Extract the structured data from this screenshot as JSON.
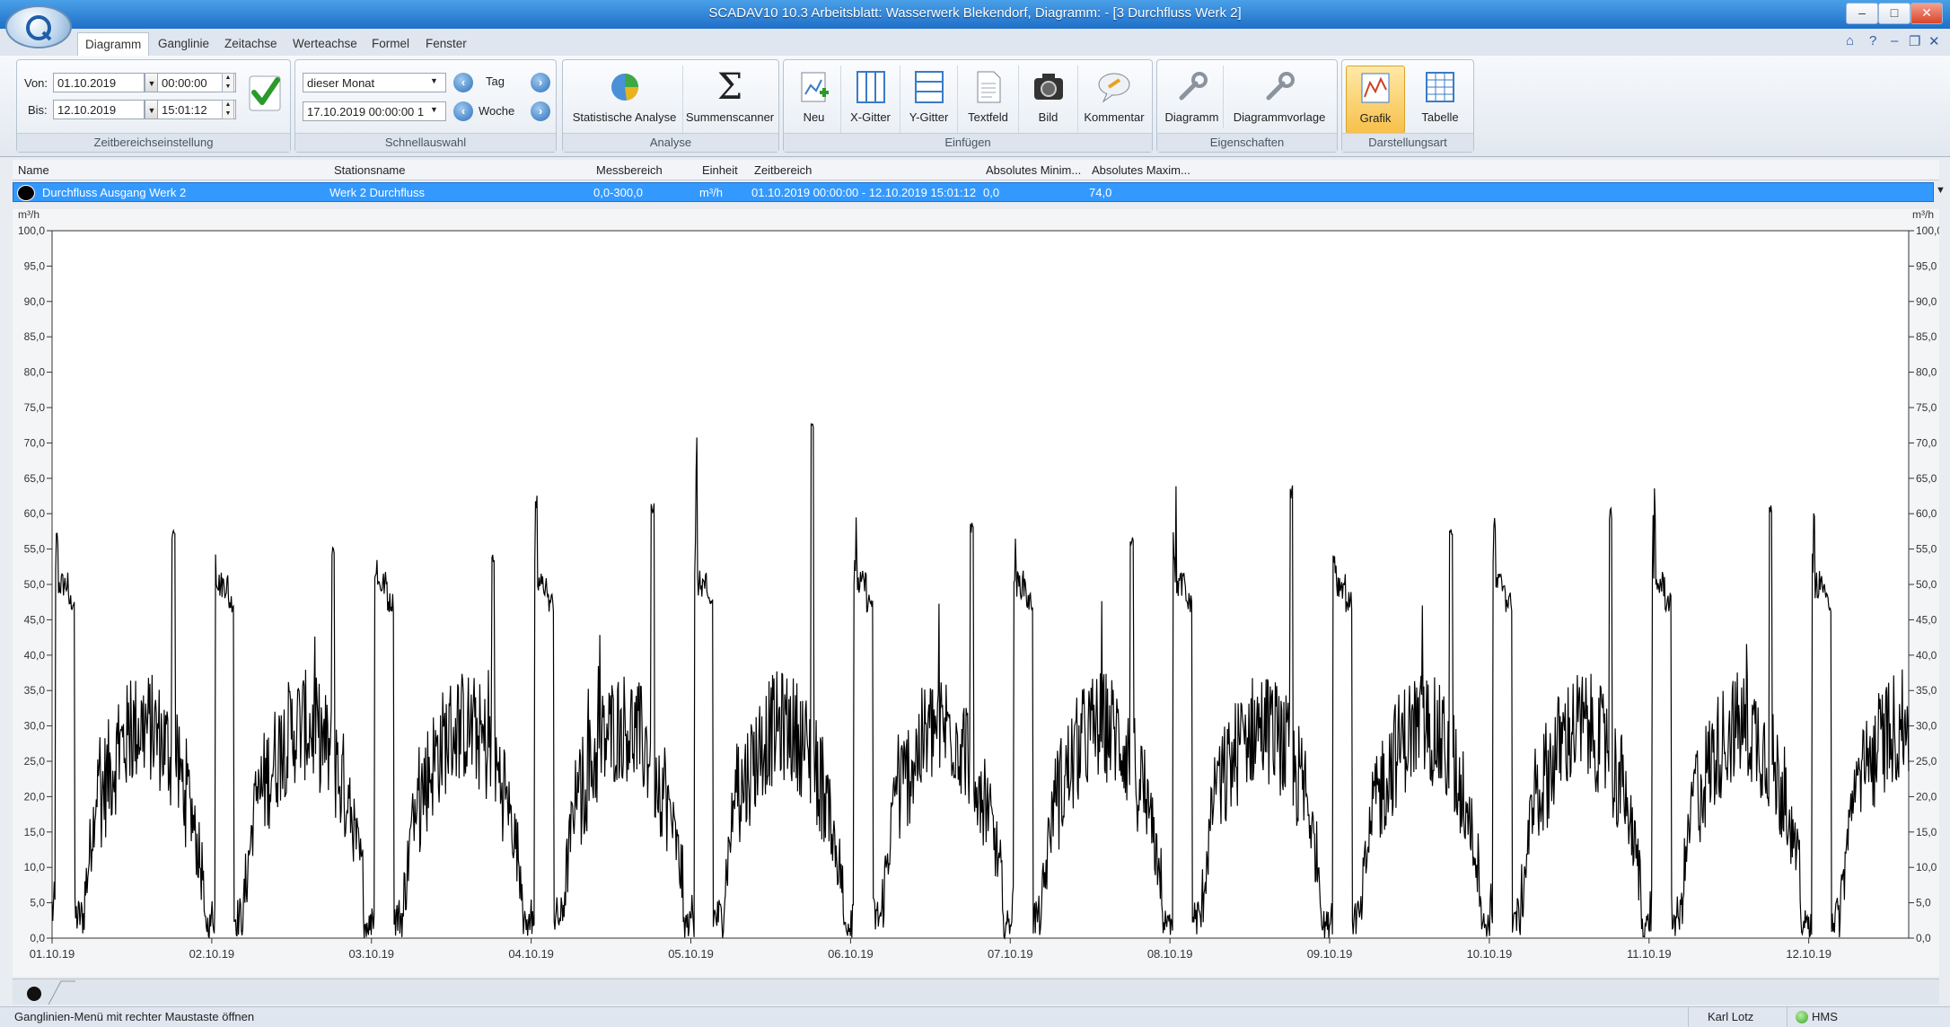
{
  "window": {
    "title": "SCADAV10 10.3 Arbeitsblatt: Wasserwerk Blekendorf, Diagramm:  - [3 Durchfluss Werk 2]",
    "buttons": [
      "–",
      "□",
      "✕"
    ]
  },
  "menu": {
    "tabs": [
      "Diagramm",
      "Ganglinie",
      "Zeitachse",
      "Werteachse",
      "Formel",
      "Fenster"
    ],
    "active": "Diagramm",
    "mdi_icons": [
      "⌂",
      "?",
      "–",
      "❐",
      "✕"
    ]
  },
  "ribbon": {
    "time_range": {
      "von_label": "Von:",
      "von_date": "01.10.2019",
      "von_time": "00:00:00",
      "bis_label": "Bis:",
      "bis_date": "12.10.2019",
      "bis_time": "15:01:12",
      "group_label": "Zeitbereichseinstellung"
    },
    "quick_select": {
      "period": "dieser Monat",
      "date": "17.10.2019 00:00:00 1",
      "tag_label": "Tag",
      "woche_label": "Woche",
      "group_label": "Schnellauswahl"
    },
    "analyse": {
      "buttons": [
        "Statistische Analyse",
        "Summenscanner"
      ],
      "group_label": "Analyse"
    },
    "einfuegen": {
      "buttons": [
        "Neu",
        "X-Gitter",
        "Y-Gitter",
        "Textfeld",
        "Bild",
        "Kommentar"
      ],
      "group_label": "Einfügen"
    },
    "eigenschaften": {
      "buttons": [
        "Diagramm",
        "Diagrammvorlage"
      ],
      "group_label": "Eigenschaften"
    },
    "darstellung": {
      "buttons": [
        "Grafik",
        "Tabelle"
      ],
      "active": "Grafik",
      "group_label": "Darstellungsart"
    }
  },
  "grid": {
    "headers": [
      "Name",
      "Stationsname",
      "Messbereich",
      "Einheit",
      "Zeitbereich",
      "Absolutes Minim...",
      "Absolutes Maxim..."
    ],
    "row": {
      "name": "Durchfluss Ausgang Werk 2",
      "station": "Werk 2 Durchfluss",
      "range": "0,0-300,0",
      "unit": "m³/h",
      "timerange": "01.10.2019 00:00:00 - 12.10.2019 15:01:12",
      "min": "0,0",
      "max": "74,0"
    }
  },
  "chart_data": {
    "type": "line",
    "yunit": "m³/h",
    "ylim": [
      0,
      100
    ],
    "yticks": [
      "0,0",
      "5,0",
      "10,0",
      "15,0",
      "20,0",
      "25,0",
      "30,0",
      "35,0",
      "40,0",
      "45,0",
      "50,0",
      "55,0",
      "60,0",
      "65,0",
      "70,0",
      "75,0",
      "80,0",
      "85,0",
      "90,0",
      "95,0",
      "100,0"
    ],
    "x_range_days": [
      0,
      11.626
    ],
    "xticks": [
      "01.10.19",
      "02.10.19",
      "03.10.19",
      "04.10.19",
      "05.10.19",
      "06.10.19",
      "07.10.19",
      "08.10.19",
      "09.10.19",
      "10.10.19",
      "11.10.19",
      "12.10.19"
    ],
    "grid": false,
    "line_color": "#000000",
    "series": [
      {
        "name": "Durchfluss Ausgang Werk 2",
        "daily_profile": {
          "peak_hour": [
            0.1,
            0.6
          ],
          "peak_value": [
            52,
            55
          ],
          "night_low": 0,
          "day_level": [
            20,
            30
          ],
          "noise": 8
        },
        "daily_peaks": [
          58,
          56,
          55,
          62,
          74,
          59,
          57,
          64,
          58,
          61,
          62,
          60
        ]
      }
    ]
  },
  "bottom": {
    "status_text": "Ganglinien-Menü mit rechter Maustaste öffnen",
    "user": "Karl Lotz",
    "hms": "HMS"
  }
}
